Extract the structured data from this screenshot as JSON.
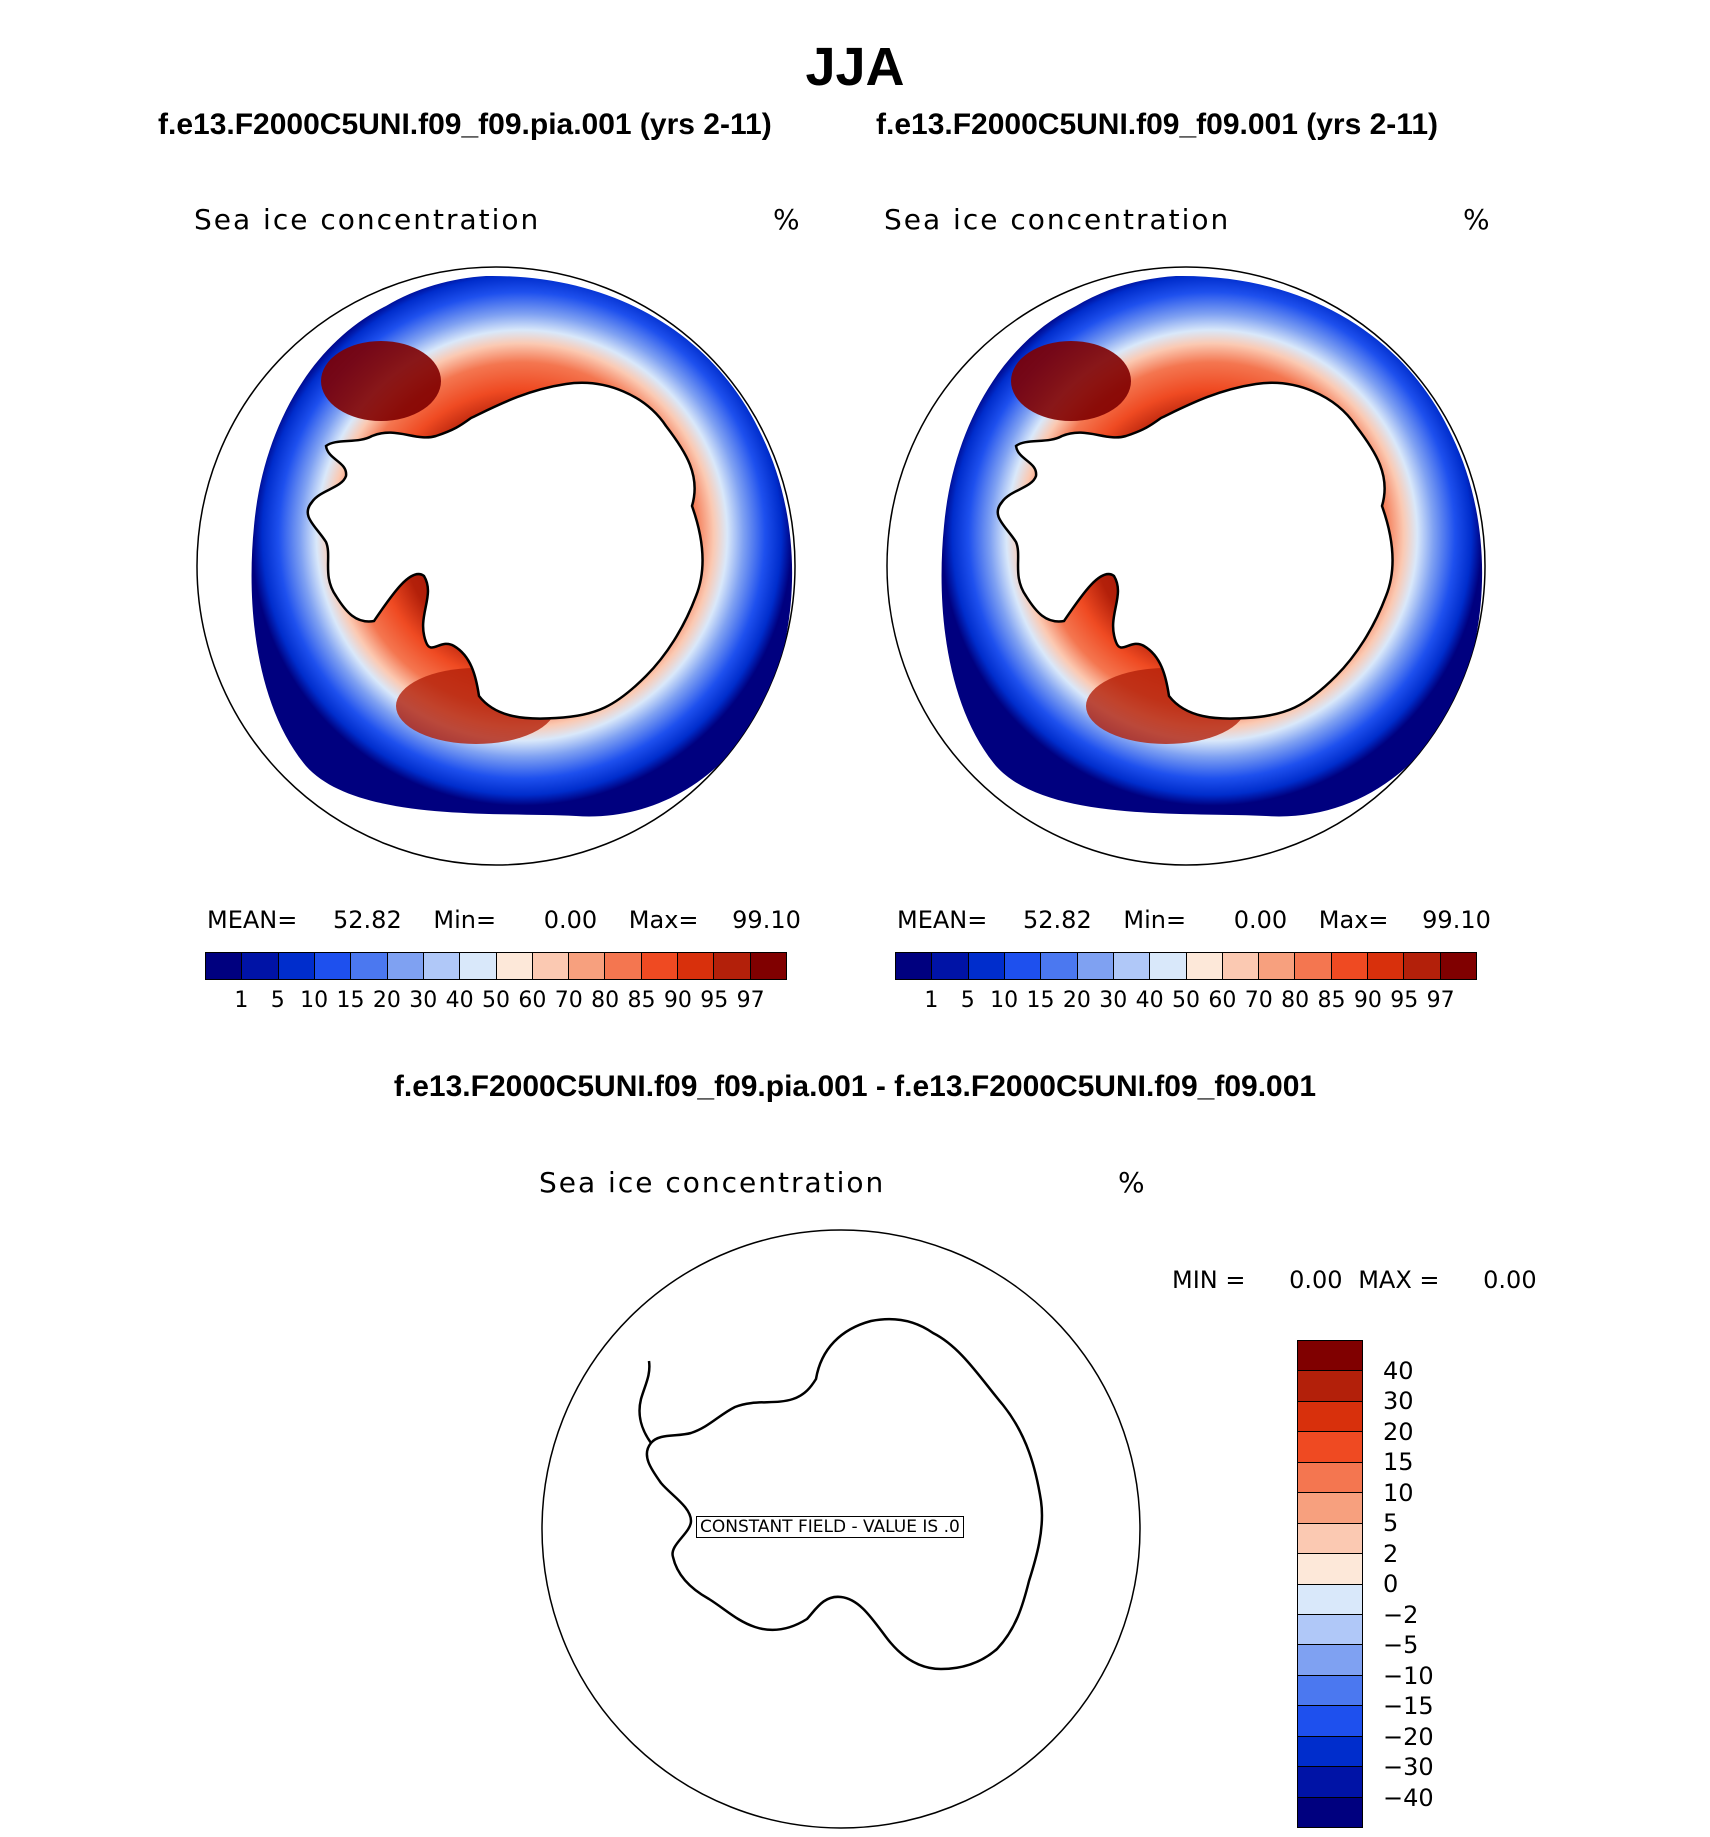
{
  "title": "JJA",
  "panels": [
    {
      "case_title": "f.e13.F2000C5UNI.f09_f09.pia.001 (yrs 2-11)",
      "field_label": "Sea ice concentration",
      "unit": "%",
      "stats": {
        "mean_label": "MEAN=",
        "mean": "52.82",
        "min_label": "Min=",
        "min": "0.00",
        "max_label": "Max=",
        "max": "99.10"
      }
    },
    {
      "case_title": "f.e13.F2000C5UNI.f09_f09.001 (yrs 2-11)",
      "field_label": "Sea ice concentration",
      "unit": "%",
      "stats": {
        "mean_label": "MEAN=",
        "mean": "52.82",
        "min_label": "Min=",
        "min": "0.00",
        "max_label": "Max=",
        "max": "99.10"
      }
    }
  ],
  "concentration_colorbar": {
    "colors": [
      "#00007f",
      "#0013a6",
      "#002dcc",
      "#1e50ee",
      "#4b78f0",
      "#7fa1f2",
      "#b0c8f8",
      "#d9e8fa",
      "#fde8d9",
      "#fbc9b2",
      "#f7a07e",
      "#f47650",
      "#ef4a22",
      "#d8300c",
      "#b3200a",
      "#800000"
    ],
    "ticks": [
      "1",
      "5",
      "10",
      "15",
      "20",
      "30",
      "40",
      "50",
      "60",
      "70",
      "80",
      "85",
      "90",
      "95",
      "97"
    ]
  },
  "difference": {
    "title": "f.e13.F2000C5UNI.f09_f09.pia.001 - f.e13.F2000C5UNI.f09_f09.001",
    "field_label": "Sea ice concentration",
    "unit": "%",
    "min_label": "MIN =",
    "min": "0.00",
    "max_label": "MAX =",
    "max": "0.00",
    "constant_note": "CONSTANT FIELD - VALUE IS .0",
    "colorbar": {
      "colors": [
        "#00007f",
        "#0013a6",
        "#002dcc",
        "#1e50ee",
        "#4b78f0",
        "#7fa1f2",
        "#b0c8f8",
        "#d9e8fa",
        "#fde8d9",
        "#fbc9b2",
        "#f7a07e",
        "#f47650",
        "#ef4a22",
        "#d8300c",
        "#b3200a",
        "#800000"
      ],
      "ticks": [
        "−40",
        "−30",
        "−20",
        "−15",
        "−10",
        "−5",
        "−2",
        "0",
        "2",
        "5",
        "10",
        "15",
        "20",
        "30",
        "40"
      ]
    }
  }
}
